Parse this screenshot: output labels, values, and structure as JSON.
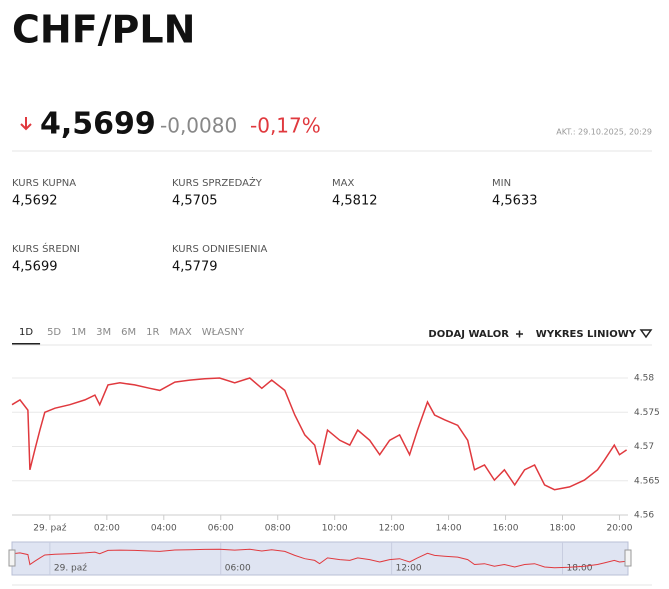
{
  "header": {
    "title": "CHF/PLN"
  },
  "quote": {
    "price": "4,5699",
    "change": "-0,0080",
    "change_pct": "-0,17%",
    "updated": "AKT.: 29.10.2025, 20:29"
  },
  "stats": [
    {
      "label": "KURS KUPNA",
      "value": "4,5692"
    },
    {
      "label": "KURS SPRZEDAŻY",
      "value": "4,5705"
    },
    {
      "label": "MAX",
      "value": "4,5812"
    },
    {
      "label": "MIN",
      "value": "4,5633"
    },
    {
      "label": "KURS ŚREDNI",
      "value": "4,5699"
    },
    {
      "label": "KURS ODNIESIENIA",
      "value": "4,5779"
    }
  ],
  "tabs": [
    "1D",
    "5D",
    "1M",
    "3M",
    "6M",
    "1R",
    "MAX",
    "WŁASNY"
  ],
  "actions": [
    "DODAJ WALOR",
    "WYKRES LINIOWY"
  ],
  "chart_data": {
    "type": "line",
    "x": [
      -1.33,
      -1.05,
      -0.77,
      -0.7,
      -0.53,
      -0.35,
      -0.18,
      0.18,
      0.7,
      1.23,
      1.58,
      1.75,
      2.04,
      2.46,
      2.98,
      3.51,
      3.86,
      4.39,
      4.91,
      5.44,
      5.96,
      6.49,
      7.02,
      7.44,
      7.79,
      8.25,
      8.6,
      8.95,
      9.3,
      9.47,
      9.75,
      10.18,
      10.53,
      10.81,
      11.23,
      11.58,
      11.93,
      12.28,
      12.63,
      12.91,
      13.26,
      13.51,
      13.86,
      14.32,
      14.67,
      14.91,
      15.26,
      15.61,
      15.96,
      16.32,
      16.67,
      17.02,
      17.37,
      17.72,
      18.25,
      18.77,
      19.23,
      19.47,
      19.82,
      20.0,
      20.25
    ],
    "series": [
      {
        "color": "#e0393e",
        "values": [
          4.5761,
          4.5768,
          4.5753,
          4.5666,
          4.5695,
          4.5724,
          4.575,
          4.5756,
          4.5761,
          4.5768,
          4.5775,
          4.5761,
          4.579,
          4.5793,
          4.579,
          4.5785,
          4.5782,
          4.5794,
          4.5797,
          4.5799,
          4.58,
          4.5793,
          4.58,
          4.5785,
          4.5797,
          4.5782,
          4.5746,
          4.5717,
          4.5702,
          4.5673,
          4.5724,
          4.5709,
          4.5702,
          4.5724,
          4.5709,
          4.5688,
          4.5709,
          4.5717,
          4.5688,
          4.5724,
          4.5765,
          4.5746,
          4.5739,
          4.5731,
          4.5709,
          4.5666,
          4.5673,
          4.5651,
          4.5666,
          4.5644,
          4.5666,
          4.5673,
          4.5644,
          4.5637,
          4.5641,
          4.5651,
          4.5666,
          4.568,
          4.5702,
          4.5688,
          4.5695
        ]
      }
    ],
    "xlim": [
      -1.33,
      20.3
    ],
    "xticks": [
      {
        "value": 0,
        "label": "29. paź"
      },
      {
        "value": 2,
        "label": "02:00"
      },
      {
        "value": 4,
        "label": "04:00"
      },
      {
        "value": 6,
        "label": "06:00"
      },
      {
        "value": 8,
        "label": "08:00"
      },
      {
        "value": 10,
        "label": "10:00"
      },
      {
        "value": 12,
        "label": "12:00"
      },
      {
        "value": 14,
        "label": "14:00"
      },
      {
        "value": 16,
        "label": "16:00"
      },
      {
        "value": 18,
        "label": "18:00"
      },
      {
        "value": 20,
        "label": "20:00"
      }
    ],
    "ylim": [
      4.56,
      4.5838
    ],
    "yticks": [
      4.56,
      4.565,
      4.57,
      4.575,
      4.58
    ],
    "grid": true,
    "navigator_xticks": [
      {
        "value": 0,
        "label": "29. paź"
      },
      {
        "value": 6,
        "label": "06:00"
      },
      {
        "value": 12,
        "label": "12:00"
      },
      {
        "value": 18,
        "label": "18:00"
      }
    ]
  }
}
